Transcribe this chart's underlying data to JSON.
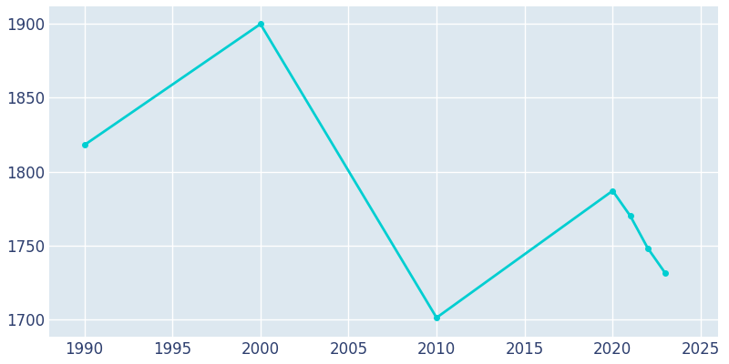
{
  "years": [
    1990,
    2000,
    2010,
    2020,
    2021,
    2022,
    2023
  ],
  "population": [
    1818,
    1900,
    1701,
    1787,
    1770,
    1748,
    1731
  ],
  "line_color": "#00CED1",
  "marker": "o",
  "marker_size": 4,
  "line_width": 2,
  "fig_bg_color": "#ffffff",
  "plot_bg_color": "#dde8f0",
  "grid_color": "#ffffff",
  "tick_color": "#2d3e6e",
  "xlabel": "",
  "ylabel": "",
  "xlim": [
    1988,
    2026
  ],
  "ylim": [
    1688,
    1912
  ],
  "yticks": [
    1700,
    1750,
    1800,
    1850,
    1900
  ],
  "xticks": [
    1990,
    1995,
    2000,
    2005,
    2010,
    2015,
    2020,
    2025
  ]
}
